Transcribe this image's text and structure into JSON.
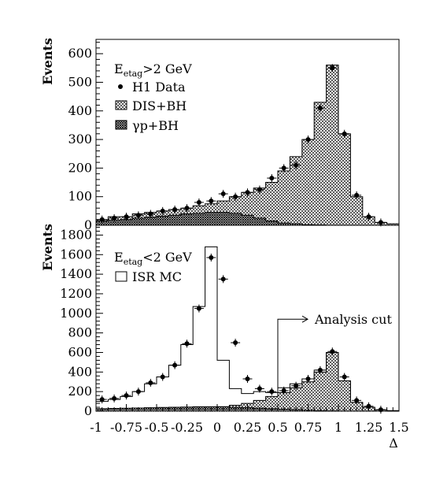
{
  "colors": {
    "ink": "#000000",
    "background": "#ffffff"
  },
  "chart_data": [
    {
      "type": "histogram",
      "panel": "top",
      "ylabel": "Events",
      "ylim": [
        0,
        650
      ],
      "yticks": [
        0,
        100,
        200,
        300,
        400,
        500,
        600
      ],
      "xlim": [
        -1,
        1.5
      ],
      "legend": {
        "header_base": "E",
        "header_sub": "etag",
        "header_rest": ">2 GeV",
        "entries": [
          "H1 Data",
          "DIS+BH",
          "γp+BH"
        ]
      },
      "bin_edges": [
        -1.0,
        -0.9,
        -0.8,
        -0.7,
        -0.6,
        -0.5,
        -0.4,
        -0.3,
        -0.2,
        -0.1,
        0.0,
        0.1,
        0.2,
        0.3,
        0.4,
        0.5,
        0.6,
        0.7,
        0.8,
        0.9,
        1.0,
        1.1,
        1.2,
        1.3,
        1.4,
        1.5
      ],
      "series": [
        {
          "name": "DIS+BH",
          "style": "hatched",
          "values": [
            20,
            30,
            30,
            40,
            45,
            50,
            55,
            60,
            68,
            75,
            85,
            100,
            115,
            130,
            150,
            190,
            240,
            300,
            430,
            560,
            320,
            100,
            30,
            10,
            5
          ]
        },
        {
          "name": "γp+BH",
          "style": "cross-hatched",
          "values": [
            15,
            18,
            20,
            25,
            28,
            32,
            35,
            40,
            42,
            45,
            45,
            42,
            35,
            25,
            15,
            8,
            5,
            2,
            1,
            0,
            0,
            0,
            0,
            0,
            0
          ]
        },
        {
          "name": "H1 Data",
          "style": "points",
          "x": [
            -0.95,
            -0.85,
            -0.75,
            -0.65,
            -0.55,
            -0.45,
            -0.35,
            -0.25,
            -0.15,
            -0.05,
            0.05,
            0.15,
            0.25,
            0.35,
            0.45,
            0.55,
            0.65,
            0.75,
            0.85,
            0.95,
            1.05,
            1.15,
            1.25,
            1.35
          ],
          "y": [
            20,
            25,
            30,
            35,
            40,
            50,
            55,
            60,
            80,
            85,
            110,
            100,
            115,
            125,
            165,
            200,
            210,
            300,
            410,
            550,
            320,
            105,
            30,
            10
          ]
        }
      ]
    },
    {
      "type": "histogram",
      "panel": "bottom",
      "ylabel": "Events",
      "ylim": [
        0,
        1900
      ],
      "yticks": [
        0,
        200,
        400,
        600,
        800,
        1000,
        1200,
        1400,
        1600,
        1800
      ],
      "xlabel": "Δ",
      "xlim": [
        -1,
        1.5
      ],
      "xticks": [
        -1,
        -0.75,
        -0.5,
        -0.25,
        0,
        0.25,
        0.5,
        0.75,
        1,
        1.25,
        1.5
      ],
      "xtick_labels": [
        "-1",
        "-0.75",
        "-0.5",
        "-0.25",
        "0",
        "0.25",
        "0.5",
        "0.75",
        "1",
        "1.25",
        "1.5"
      ],
      "legend": {
        "header_base": "E",
        "header_sub": "etag",
        "header_rest": "<2 GeV",
        "entries": [
          "ISR MC"
        ]
      },
      "annotation": {
        "text": "Analysis cut",
        "x": 0.5
      },
      "bin_edges": [
        -1.0,
        -0.9,
        -0.8,
        -0.7,
        -0.6,
        -0.5,
        -0.4,
        -0.3,
        -0.2,
        -0.1,
        0.0,
        0.1,
        0.2,
        0.3,
        0.4,
        0.5,
        0.6,
        0.7,
        0.8,
        0.9,
        1.0,
        1.1,
        1.2,
        1.3,
        1.4,
        1.5
      ],
      "series": [
        {
          "name": "ISR MC",
          "style": "open",
          "values": [
            100,
            120,
            150,
            200,
            280,
            350,
            470,
            680,
            1070,
            1680,
            520,
            230,
            180,
            200,
            190,
            240,
            280,
            330,
            420,
            600,
            310,
            90,
            40,
            15,
            5
          ]
        },
        {
          "name": "DIS+BH",
          "style": "hatched",
          "values": [
            5,
            5,
            6,
            7,
            8,
            10,
            12,
            14,
            20,
            30,
            45,
            60,
            80,
            110,
            150,
            190,
            240,
            300,
            400,
            600,
            310,
            90,
            40,
            15,
            5
          ]
        },
        {
          "name": "γp+BH",
          "style": "cross-hatched",
          "values": [
            25,
            28,
            30,
            32,
            35,
            38,
            40,
            42,
            45,
            45,
            45,
            40,
            35,
            30,
            25,
            20,
            15,
            10,
            5,
            2,
            0,
            0,
            0,
            0,
            0
          ]
        },
        {
          "name": "H1 Data",
          "style": "points",
          "x": [
            -0.95,
            -0.85,
            -0.75,
            -0.65,
            -0.55,
            -0.45,
            -0.35,
            -0.25,
            -0.15,
            -0.05,
            0.05,
            0.15,
            0.25,
            0.35,
            0.45,
            0.55,
            0.65,
            0.75,
            0.85,
            0.95,
            1.05,
            1.15,
            1.25,
            1.35
          ],
          "y": [
            120,
            130,
            160,
            200,
            290,
            350,
            470,
            690,
            1050,
            1570,
            1350,
            700,
            330,
            230,
            200,
            210,
            260,
            330,
            420,
            610,
            350,
            110,
            50,
            15
          ]
        }
      ]
    }
  ]
}
